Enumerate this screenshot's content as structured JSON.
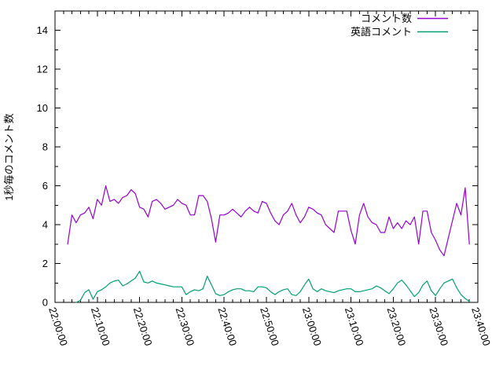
{
  "chart_data": {
    "type": "line",
    "title": "",
    "xlabel": "",
    "ylabel": "1秒毎のコメント数",
    "ylim": [
      0,
      15
    ],
    "ytick_values": [
      0,
      2,
      4,
      6,
      8,
      10,
      12,
      14
    ],
    "y_minor_step": 1,
    "xlim_minutes": [
      0,
      100
    ],
    "x_axis_start_label": "22:00:00",
    "x_axis_end_label": "23:40:00",
    "xtick_minutes": [
      0,
      10,
      20,
      30,
      40,
      50,
      60,
      70,
      80,
      90,
      100
    ],
    "xtick_labels": [
      "22:00:00",
      "22:10:00",
      "22:20:00",
      "22:30:00",
      "22:40:00",
      "22:50:00",
      "23:00:00",
      "23:10:00",
      "23:20:00",
      "23:30:00",
      "23:40:00"
    ],
    "x_minor_step_minutes": 2,
    "grid": false,
    "legend_position": "top-right",
    "axis_color": "#000000",
    "background_color": "#ffffff",
    "series": [
      {
        "name": "コメント数",
        "color": "#9400d3",
        "start_minute": 3,
        "step_minutes": 1,
        "values": [
          3.0,
          4.5,
          4.1,
          4.5,
          4.6,
          4.9,
          4.3,
          5.3,
          5.0,
          6.0,
          5.2,
          5.3,
          5.1,
          5.4,
          5.5,
          5.8,
          5.6,
          4.9,
          4.8,
          4.4,
          5.2,
          5.3,
          5.1,
          4.8,
          4.9,
          5.0,
          5.3,
          5.1,
          5.0,
          4.5,
          4.5,
          5.5,
          5.5,
          5.2,
          4.3,
          3.1,
          4.5,
          4.5,
          4.6,
          4.8,
          4.6,
          4.4,
          4.7,
          4.9,
          4.7,
          4.6,
          5.2,
          5.1,
          4.6,
          4.2,
          4.0,
          4.5,
          4.7,
          5.1,
          4.5,
          4.1,
          4.4,
          4.9,
          4.8,
          4.6,
          4.5,
          4.0,
          3.8,
          3.6,
          4.7,
          4.7,
          4.7,
          3.7,
          3.0,
          4.5,
          5.1,
          4.4,
          4.1,
          4.0,
          3.6,
          3.6,
          4.4,
          3.8,
          4.1,
          3.8,
          4.2,
          4.0,
          4.4,
          3.0,
          4.7,
          4.7,
          3.6,
          3.2,
          2.7,
          2.4,
          3.3,
          4.2,
          5.1,
          4.5,
          5.9,
          3.0
        ]
      },
      {
        "name": "英語コメント",
        "color": "#009e73",
        "start_minute": 5,
        "step_minutes": 1,
        "values": [
          0,
          0.1,
          0.5,
          0.65,
          0.16,
          0.55,
          0.65,
          0.8,
          1.0,
          1.1,
          1.15,
          0.85,
          0.95,
          1.1,
          1.25,
          1.6,
          1.05,
          1.0,
          1.1,
          1.0,
          0.95,
          0.9,
          0.85,
          0.8,
          0.8,
          0.8,
          0.4,
          0.55,
          0.65,
          0.6,
          0.7,
          1.35,
          0.9,
          0.45,
          0.35,
          0.4,
          0.55,
          0.65,
          0.7,
          0.7,
          0.6,
          0.6,
          0.55,
          0.8,
          0.8,
          0.75,
          0.55,
          0.4,
          0.55,
          0.65,
          0.7,
          0.4,
          0.35,
          0.55,
          0.9,
          1.2,
          0.7,
          0.55,
          0.7,
          0.6,
          0.55,
          0.5,
          0.6,
          0.65,
          0.7,
          0.7,
          0.55,
          0.55,
          0.6,
          0.65,
          0.7,
          0.85,
          0.75,
          0.6,
          0.45,
          0.7,
          1.0,
          1.15,
          0.9,
          0.6,
          0.3,
          0.5,
          0.9,
          1.1,
          0.6,
          0.35,
          0.7,
          1.0,
          1.1,
          1.2,
          0.75,
          0.4,
          0.2,
          0.05
        ]
      }
    ]
  }
}
